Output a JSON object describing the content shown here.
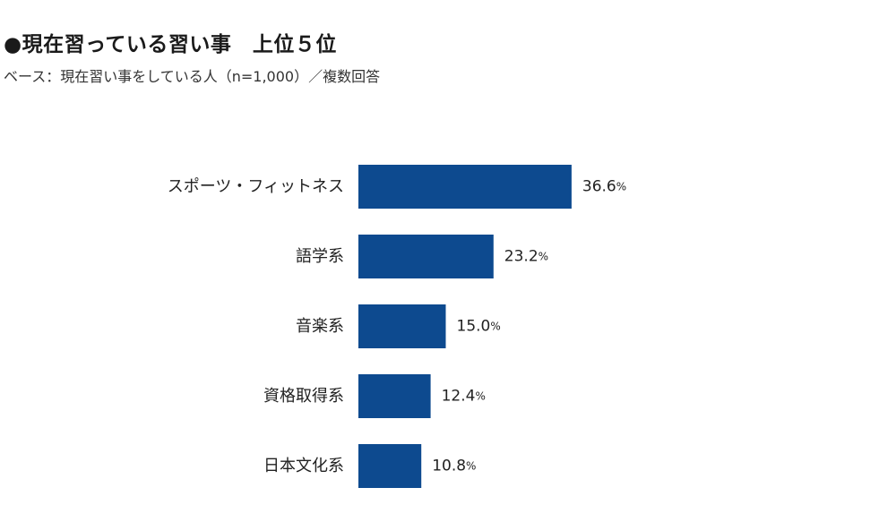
{
  "title": "●現在習っている習い事　上位５位",
  "subtitle": "ベース：現在習い事をしている人（n=1,000）／複数回答",
  "chart_data": {
    "type": "bar",
    "orientation": "horizontal",
    "categories": [
      "スポーツ・フィットネス",
      "語学系",
      "音楽系",
      "資格取得系",
      "日本文化系"
    ],
    "values": [
      36.6,
      23.2,
      15.0,
      12.4,
      10.8
    ],
    "value_labels": [
      "36.6",
      "23.2",
      "15.0",
      "12.4",
      "10.8"
    ],
    "unit": "%",
    "bar_color": "#0d4a8f",
    "xlim": [
      0,
      100
    ],
    "grid": false,
    "legend": "none"
  }
}
